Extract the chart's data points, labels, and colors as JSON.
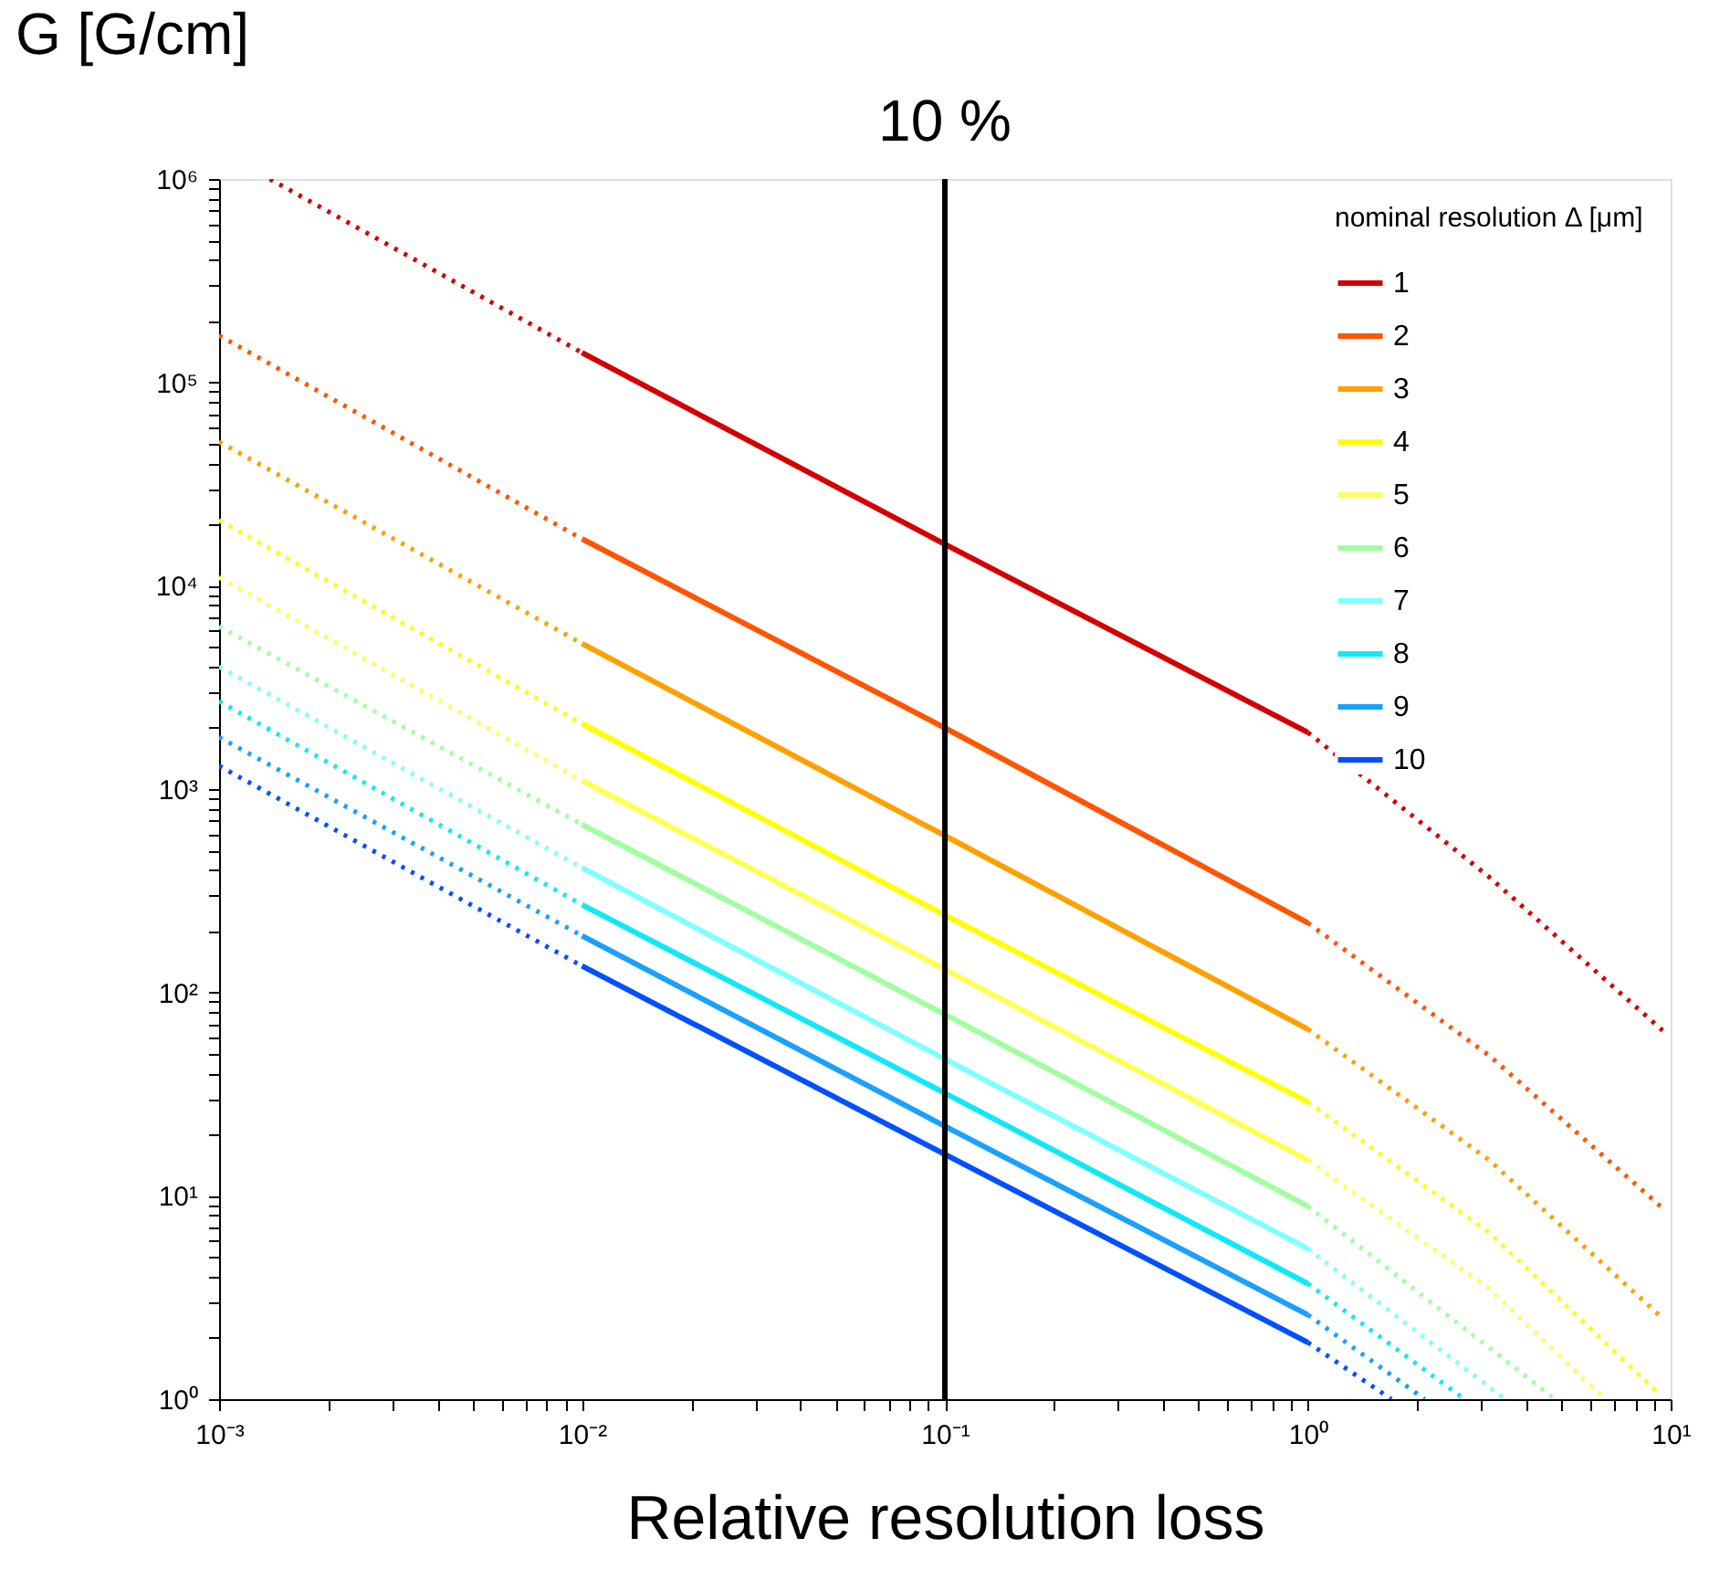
{
  "chart_data": {
    "type": "line",
    "xlabel": "Relative resolution loss",
    "ylabel": "G [G/cm]",
    "legend_title": "nominal resolution Δ [μm]",
    "legend": "top right",
    "grid": false,
    "log": "xy",
    "xlim": [
      0.001,
      10
    ],
    "ylim": [
      1,
      1000000
    ],
    "xticks": [
      {
        "value": 0.001,
        "label": "10⁻³"
      },
      {
        "value": 0.002,
        "label": null
      },
      {
        "value": 0.003,
        "label": null
      },
      {
        "value": 0.004,
        "label": null
      },
      {
        "value": 0.005,
        "label": null
      },
      {
        "value": 0.006,
        "label": null
      },
      {
        "value": 0.007,
        "label": null
      },
      {
        "value": 0.008,
        "label": null
      },
      {
        "value": 0.009,
        "label": null
      },
      {
        "value": 0.01,
        "label": "10⁻²"
      },
      {
        "value": 0.02,
        "label": null
      },
      {
        "value": 0.03,
        "label": null
      },
      {
        "value": 0.04,
        "label": null
      },
      {
        "value": 0.05,
        "label": null
      },
      {
        "value": 0.06,
        "label": null
      },
      {
        "value": 0.07,
        "label": null
      },
      {
        "value": 0.08,
        "label": null
      },
      {
        "value": 0.09,
        "label": null
      },
      {
        "value": 0.1,
        "label": "10⁻¹"
      },
      {
        "value": 0.2,
        "label": null
      },
      {
        "value": 0.3,
        "label": null
      },
      {
        "value": 0.4,
        "label": null
      },
      {
        "value": 0.5,
        "label": null
      },
      {
        "value": 0.6,
        "label": null
      },
      {
        "value": 0.7,
        "label": null
      },
      {
        "value": 0.8,
        "label": null
      },
      {
        "value": 0.9,
        "label": null
      },
      {
        "value": 1,
        "label": "10⁰"
      },
      {
        "value": 2,
        "label": null
      },
      {
        "value": 3,
        "label": null
      },
      {
        "value": 4,
        "label": null
      },
      {
        "value": 5,
        "label": null
      },
      {
        "value": 6,
        "label": null
      },
      {
        "value": 7,
        "label": null
      },
      {
        "value": 8,
        "label": null
      },
      {
        "value": 9,
        "label": null
      },
      {
        "value": 10,
        "label": "10¹"
      }
    ],
    "yticks": [
      {
        "value": 1,
        "label": "10⁰"
      },
      {
        "value": 2,
        "label": null
      },
      {
        "value": 3,
        "label": null
      },
      {
        "value": 4,
        "label": null
      },
      {
        "value": 5,
        "label": null
      },
      {
        "value": 6,
        "label": null
      },
      {
        "value": 7,
        "label": null
      },
      {
        "value": 8,
        "label": null
      },
      {
        "value": 9,
        "label": null
      },
      {
        "value": 10,
        "label": "10¹"
      },
      {
        "value": 20,
        "label": null
      },
      {
        "value": 30,
        "label": null
      },
      {
        "value": 40,
        "label": null
      },
      {
        "value": 50,
        "label": null
      },
      {
        "value": 60,
        "label": null
      },
      {
        "value": 70,
        "label": null
      },
      {
        "value": 80,
        "label": null
      },
      {
        "value": 90,
        "label": null
      },
      {
        "value": 100,
        "label": "10²"
      },
      {
        "value": 200,
        "label": null
      },
      {
        "value": 300,
        "label": null
      },
      {
        "value": 400,
        "label": null
      },
      {
        "value": 500,
        "label": null
      },
      {
        "value": 600,
        "label": null
      },
      {
        "value": 700,
        "label": null
      },
      {
        "value": 800,
        "label": null
      },
      {
        "value": 900,
        "label": null
      },
      {
        "value": 1000,
        "label": "10³"
      },
      {
        "value": 2000,
        "label": null
      },
      {
        "value": 3000,
        "label": null
      },
      {
        "value": 4000,
        "label": null
      },
      {
        "value": 5000,
        "label": null
      },
      {
        "value": 6000,
        "label": null
      },
      {
        "value": 7000,
        "label": null
      },
      {
        "value": 8000,
        "label": null
      },
      {
        "value": 9000,
        "label": null
      },
      {
        "value": 10000,
        "label": "10⁴"
      },
      {
        "value": 20000,
        "label": null
      },
      {
        "value": 30000,
        "label": null
      },
      {
        "value": 40000,
        "label": null
      },
      {
        "value": 50000,
        "label": null
      },
      {
        "value": 60000,
        "label": null
      },
      {
        "value": 70000,
        "label": null
      },
      {
        "value": 80000,
        "label": null
      },
      {
        "value": 90000,
        "label": null
      },
      {
        "value": 100000,
        "label": "10⁵"
      },
      {
        "value": 200000,
        "label": null
      },
      {
        "value": 300000,
        "label": null
      },
      {
        "value": 400000,
        "label": null
      },
      {
        "value": 500000,
        "label": null
      },
      {
        "value": 600000,
        "label": null
      },
      {
        "value": 700000,
        "label": null
      },
      {
        "value": 800000,
        "label": null
      },
      {
        "value": 900000,
        "label": null
      },
      {
        "value": 1000000,
        "label": "10⁶"
      }
    ],
    "ref_lines": [
      {
        "axis": "x",
        "value": 0.1,
        "label": "10 %",
        "color": "#000000",
        "line_style": "solid"
      }
    ],
    "series": [
      {
        "name": "1",
        "color": "#d40000",
        "line_style": "solid",
        "x": [
          0.01,
          0.1,
          1
        ],
        "values": [
          140000,
          16000,
          1900
        ]
      },
      {
        "name": "2",
        "color": "#ff5500",
        "line_style": "solid",
        "x": [
          0.01,
          0.1,
          1
        ],
        "values": [
          17000,
          2000,
          220
        ]
      },
      {
        "name": "3",
        "color": "#ffa000",
        "line_style": "solid",
        "x": [
          0.01,
          0.1,
          1
        ],
        "values": [
          5200,
          590,
          66
        ]
      },
      {
        "name": "4",
        "color": "#ffff00",
        "line_style": "solid",
        "x": [
          0.01,
          0.1,
          1
        ],
        "values": [
          2100,
          240,
          29
        ]
      },
      {
        "name": "5",
        "color": "#ffff55",
        "line_style": "solid",
        "x": [
          0.01,
          0.1,
          1
        ],
        "values": [
          1100,
          130,
          15
        ]
      },
      {
        "name": "6",
        "color": "#a0ffa0",
        "line_style": "solid",
        "x": [
          0.01,
          0.1,
          1
        ],
        "values": [
          670,
          78,
          8.9
        ]
      },
      {
        "name": "7",
        "color": "#80ffff",
        "line_style": "solid",
        "x": [
          0.01,
          0.1,
          1
        ],
        "values": [
          410,
          47,
          5.5
        ]
      },
      {
        "name": "8",
        "color": "#10e8f8",
        "line_style": "solid",
        "x": [
          0.01,
          0.1,
          1
        ],
        "values": [
          270,
          32,
          3.7
        ]
      },
      {
        "name": "9",
        "color": "#1aa0ff",
        "line_style": "solid",
        "x": [
          0.01,
          0.1,
          1
        ],
        "values": [
          190,
          22,
          2.6
        ]
      },
      {
        "name": "10",
        "color": "#0050ff",
        "line_style": "solid",
        "x": [
          0.01,
          0.1,
          1
        ],
        "values": [
          135,
          16,
          1.9
        ]
      },
      {
        "color": "#d40000",
        "line_style": "dotted",
        "x": [
          0.00138,
          0.01
        ],
        "values": [
          1000000,
          140000
        ]
      },
      {
        "color": "#ff5500",
        "line_style": "dotted",
        "x": [
          0.001,
          0.01
        ],
        "values": [
          170000,
          17000
        ]
      },
      {
        "color": "#ffa000",
        "line_style": "dotted",
        "x": [
          0.001,
          0.01
        ],
        "values": [
          51000,
          5200
        ]
      },
      {
        "color": "#ffff00",
        "line_style": "dotted",
        "x": [
          0.001,
          0.01
        ],
        "values": [
          21000,
          2100
        ]
      },
      {
        "color": "#ffff55",
        "line_style": "dotted",
        "x": [
          0.001,
          0.01
        ],
        "values": [
          11000,
          1100
        ]
      },
      {
        "color": "#a0ffa0",
        "line_style": "dotted",
        "x": [
          0.001,
          0.01
        ],
        "values": [
          6300,
          670
        ]
      },
      {
        "color": "#80ffff",
        "line_style": "dotted",
        "x": [
          0.001,
          0.01
        ],
        "values": [
          4000,
          410
        ]
      },
      {
        "color": "#10e8f8",
        "line_style": "dotted",
        "x": [
          0.001,
          0.01
        ],
        "values": [
          2700,
          270
        ]
      },
      {
        "color": "#1aa0ff",
        "line_style": "dotted",
        "x": [
          0.001,
          0.01
        ],
        "values": [
          1800,
          190
        ]
      },
      {
        "color": "#0050ff",
        "line_style": "dotted",
        "x": [
          0.001,
          0.01
        ],
        "values": [
          1300,
          135
        ]
      },
      {
        "color": "#d40000",
        "line_style": "dotted",
        "x": [
          1,
          3.16,
          9.5
        ],
        "values": [
          1900,
          370,
          65
        ]
      },
      {
        "color": "#ff5500",
        "line_style": "dotted",
        "x": [
          1,
          3.16,
          9.5
        ],
        "values": [
          220,
          49,
          8.7
        ]
      },
      {
        "color": "#ffa000",
        "line_style": "dotted",
        "x": [
          1,
          3.16,
          9.5
        ],
        "values": [
          66,
          15,
          2.5
        ]
      },
      {
        "color": "#ffff00",
        "line_style": "dotted",
        "x": [
          1,
          3.16,
          9.1
        ],
        "values": [
          29,
          6.6,
          1.1
        ]
      },
      {
        "color": "#ffff55",
        "line_style": "dotted",
        "x": [
          1,
          3.16,
          6.6
        ],
        "values": [
          15,
          3.5,
          1
        ]
      },
      {
        "color": "#a0ffa0",
        "line_style": "dotted",
        "x": [
          1,
          4.8
        ],
        "values": [
          8.9,
          1
        ]
      },
      {
        "color": "#80ffff",
        "line_style": "dotted",
        "x": [
          1,
          3.5
        ],
        "values": [
          5.5,
          1
        ]
      },
      {
        "color": "#10e8f8",
        "line_style": "dotted",
        "x": [
          1,
          2.7
        ],
        "values": [
          3.7,
          1
        ]
      },
      {
        "color": "#1aa0ff",
        "line_style": "dotted",
        "x": [
          1,
          2.1
        ],
        "values": [
          2.6,
          1
        ]
      },
      {
        "color": "#0050ff",
        "line_style": "dotted",
        "x": [
          1,
          1.7
        ],
        "values": [
          1.9,
          1
        ]
      }
    ]
  }
}
